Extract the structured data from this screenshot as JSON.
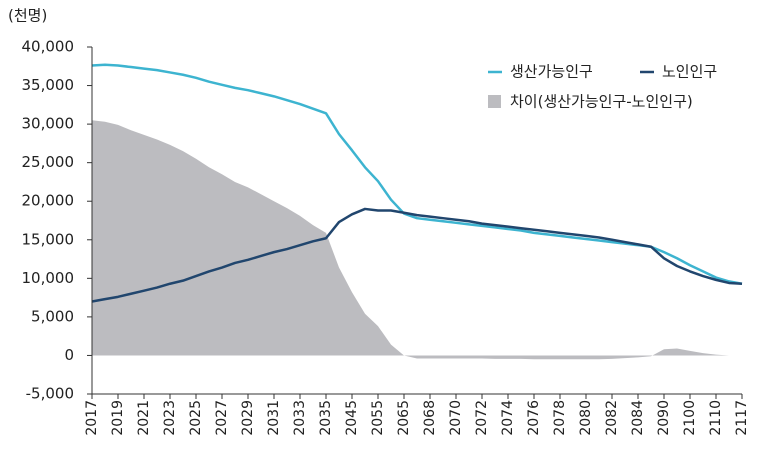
{
  "chart_data": {
    "type": "line",
    "unit_label": "(천명)",
    "categories": [
      "2017",
      null,
      "2019",
      null,
      "2021",
      null,
      "2023",
      null,
      "2025",
      null,
      "2027",
      null,
      "2029",
      null,
      "2031",
      null,
      "2033",
      null,
      "2035",
      null,
      "2045",
      null,
      "2055",
      null,
      "2065",
      null,
      "2068",
      null,
      "2070",
      null,
      "2072",
      null,
      "2074",
      null,
      "2076",
      null,
      "2078",
      null,
      "2080",
      null,
      "2082",
      null,
      "2084",
      null,
      "2090",
      null,
      "2100",
      null,
      "2110",
      null,
      "2117"
    ],
    "series": [
      {
        "name": "차이(생산가능인구-노인인구)",
        "kind": "area",
        "color": "#bcbcc0",
        "values": [
          30500,
          30300,
          29900,
          29200,
          28600,
          28000,
          27300,
          26500,
          25500,
          24400,
          23500,
          22500,
          21800,
          20900,
          20000,
          19100,
          18100,
          16900,
          15900,
          11400,
          8200,
          5400,
          3800,
          1400,
          0,
          -400,
          -400,
          -400,
          -400,
          -400,
          -400,
          -450,
          -450,
          -450,
          -500,
          -500,
          -500,
          -500,
          -500,
          -500,
          -450,
          -350,
          -250,
          -100,
          800,
          900,
          600,
          300,
          100,
          0,
          0
        ]
      },
      {
        "name": "생산가능인구",
        "kind": "line",
        "color": "#3db4d0",
        "values": [
          37600,
          37700,
          37600,
          37400,
          37200,
          37000,
          36700,
          36400,
          36000,
          35500,
          35100,
          34700,
          34400,
          34000,
          33600,
          33100,
          32600,
          32000,
          31400,
          28700,
          26600,
          24400,
          22600,
          20200,
          18400,
          17800,
          17600,
          17400,
          17200,
          17000,
          16800,
          16600,
          16400,
          16200,
          15900,
          15700,
          15500,
          15300,
          15100,
          14900,
          14700,
          14500,
          14300,
          14100,
          13400,
          12600,
          11700,
          10900,
          10100,
          9600,
          9300
        ]
      },
      {
        "name": "노인인구",
        "kind": "line",
        "color": "#21466e",
        "values": [
          7000,
          7300,
          7600,
          8000,
          8400,
          8800,
          9300,
          9700,
          10300,
          10900,
          11400,
          12000,
          12400,
          12900,
          13400,
          13800,
          14300,
          14800,
          15200,
          17300,
          18300,
          19000,
          18800,
          18800,
          18500,
          18200,
          18000,
          17800,
          17600,
          17400,
          17100,
          16900,
          16700,
          16500,
          16300,
          16100,
          15900,
          15700,
          15500,
          15300,
          15000,
          14700,
          14400,
          14100,
          12600,
          11600,
          10900,
          10300,
          9800,
          9400,
          9300
        ]
      }
    ],
    "ylim": [
      -5000,
      40000
    ],
    "yticks": [
      {
        "value": -5000,
        "label": "-5,000"
      },
      0,
      {
        "value": 5000,
        "label": "5,000"
      },
      {
        "value": 10000,
        "label": "10,000"
      },
      {
        "value": 15000,
        "label": "15,000"
      },
      {
        "value": 20000,
        "label": "20,000"
      },
      {
        "value": 25000,
        "label": "25,000"
      },
      {
        "value": 30000,
        "label": "30,000"
      },
      {
        "value": 35000,
        "label": "35,000"
      },
      {
        "value": 40000,
        "label": "40,000"
      }
    ],
    "legend": "upper right"
  }
}
